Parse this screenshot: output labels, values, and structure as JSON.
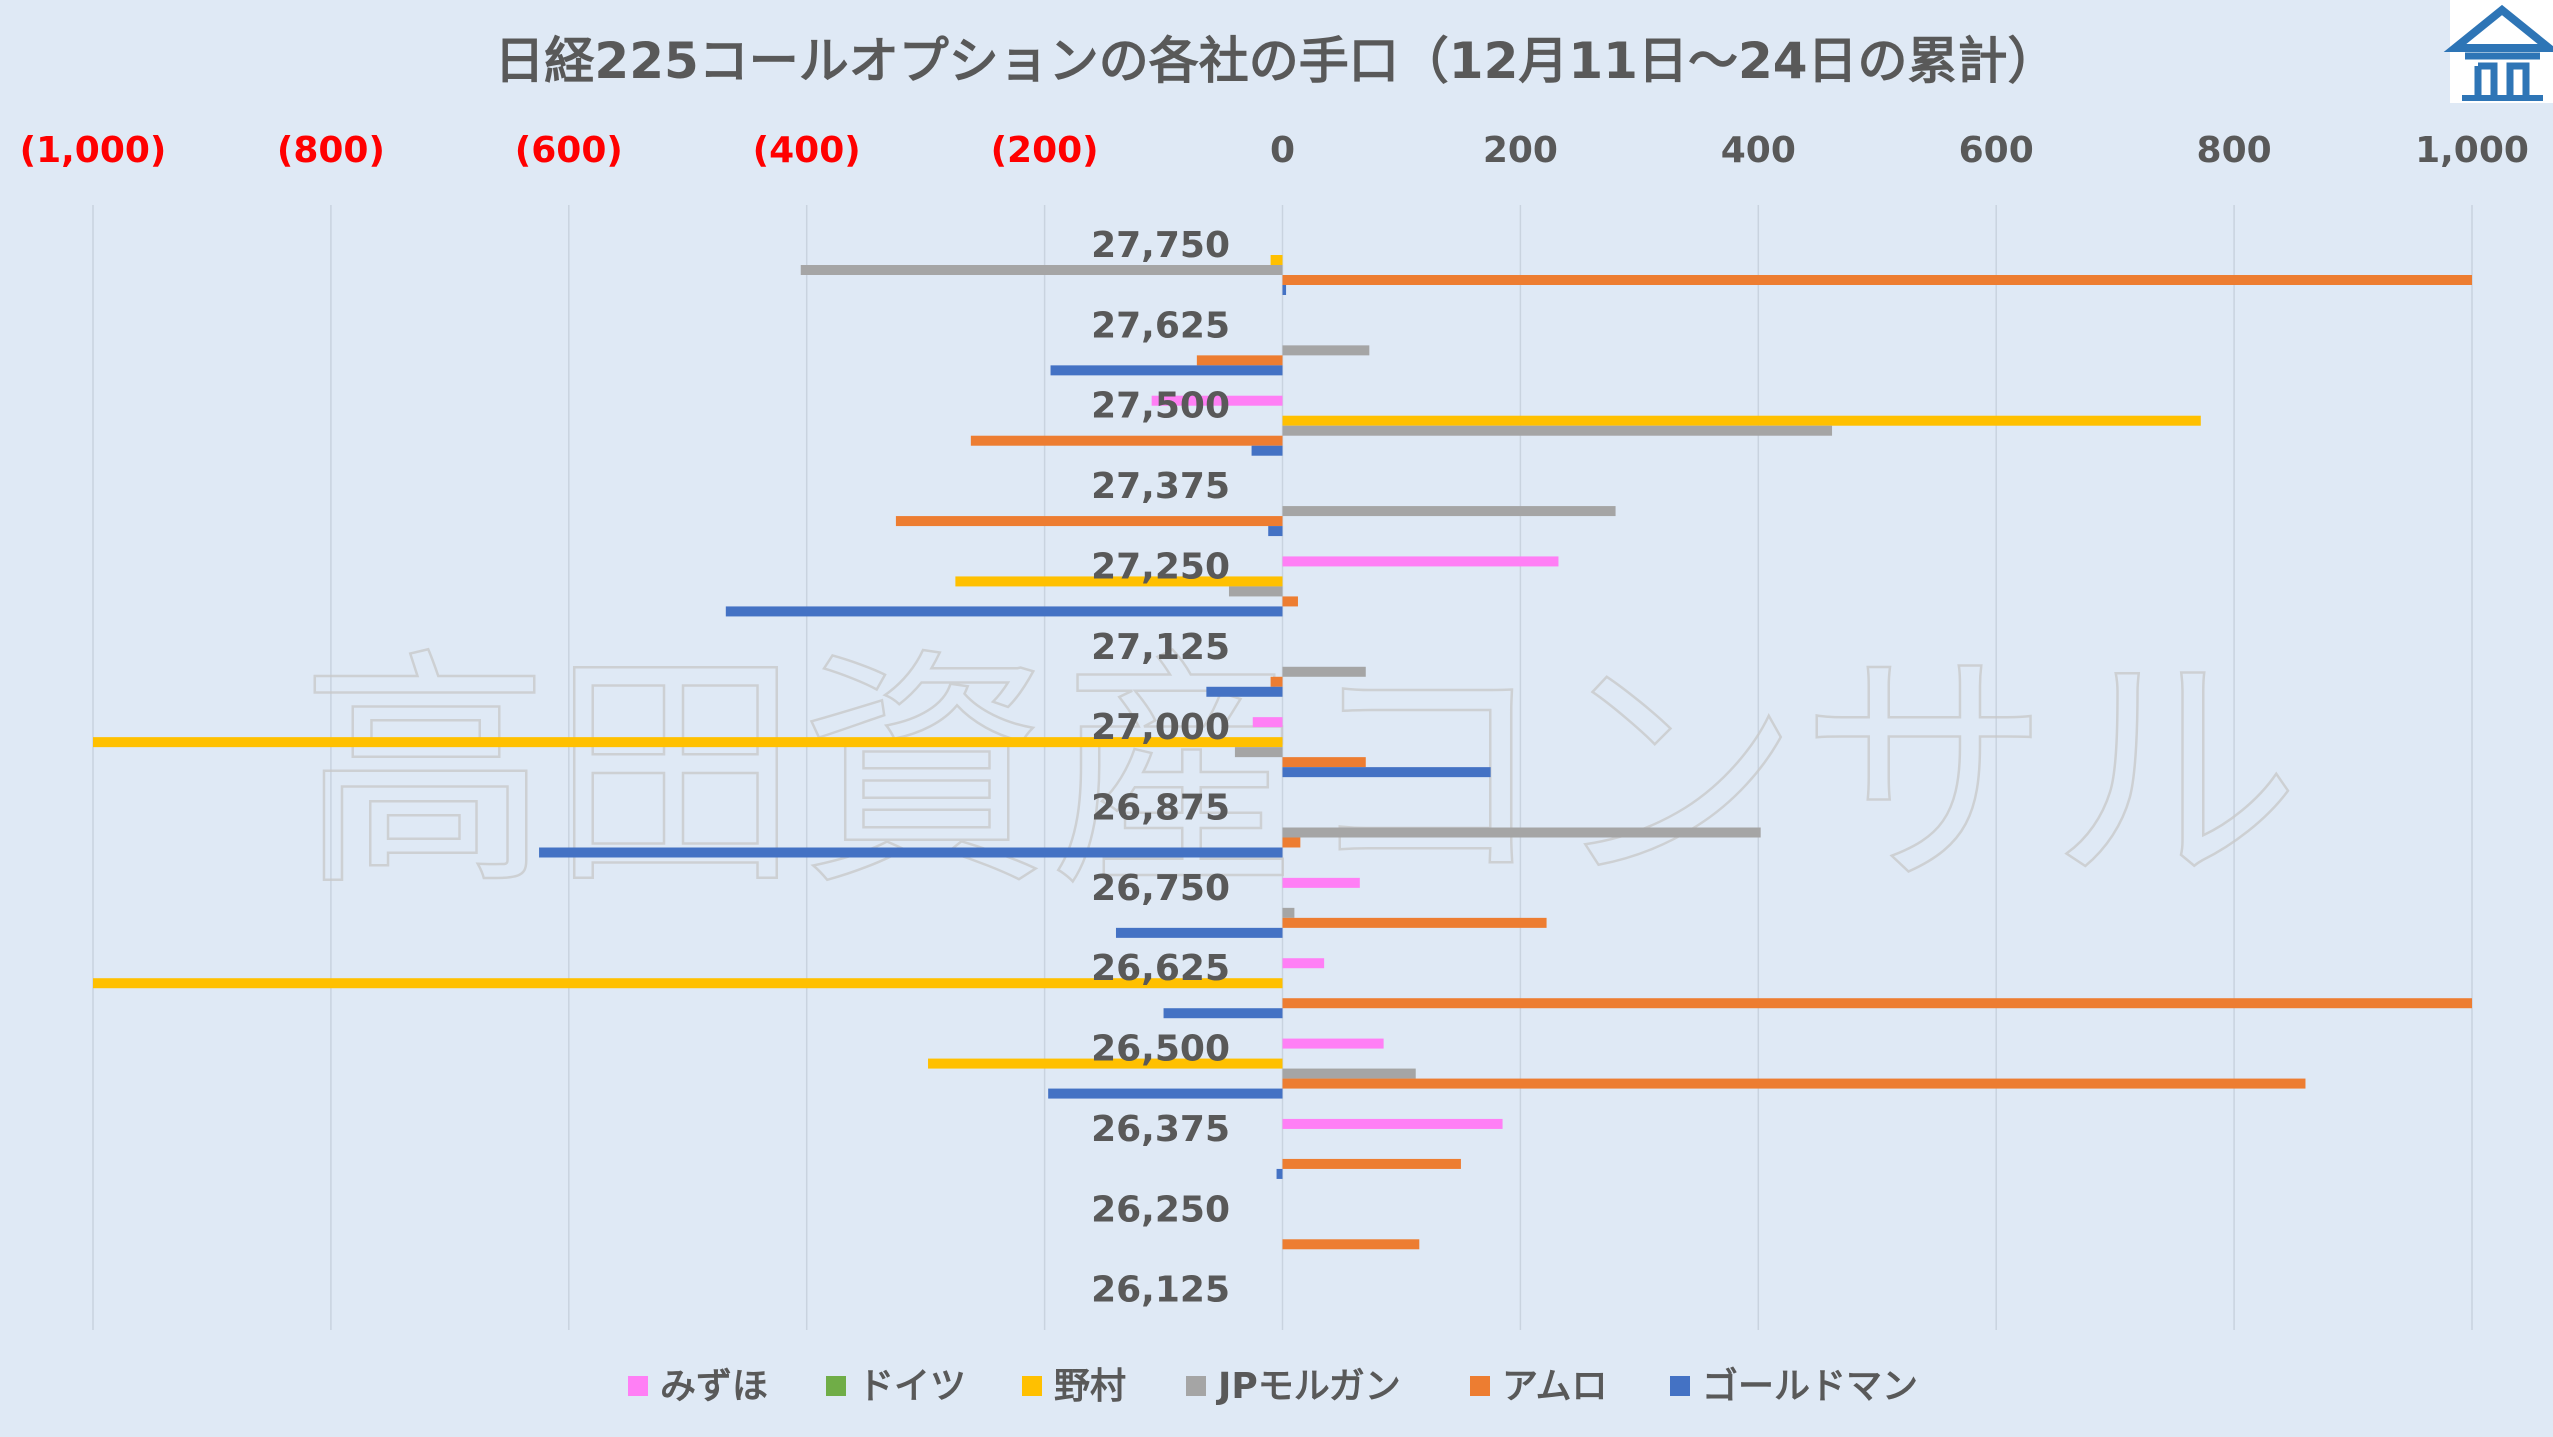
{
  "colors": {
    "background": "#dfe9f5",
    "grid": "#c9d3df",
    "negative_tick": "#ff0000",
    "positive_tick": "#595959",
    "logo": "#2e75b6"
  },
  "watermark": "高田資産コンサル",
  "logo": "logo-icon",
  "chart_data": {
    "type": "bar",
    "orientation": "horizontal",
    "title": "日経225コールオプションの各社の手口（12月11日～24日の累計）",
    "xlim": [
      -1000,
      1000
    ],
    "x_ticks": [
      {
        "value": -1000,
        "label": "(1,000)"
      },
      {
        "value": -800,
        "label": "(800)"
      },
      {
        "value": -600,
        "label": "(600)"
      },
      {
        "value": -400,
        "label": "(400)"
      },
      {
        "value": -200,
        "label": "(200)"
      },
      {
        "value": 0,
        "label": "0"
      },
      {
        "value": 200,
        "label": "200"
      },
      {
        "value": 400,
        "label": "400"
      },
      {
        "value": 600,
        "label": "600"
      },
      {
        "value": 800,
        "label": "800"
      },
      {
        "value": 1000,
        "label": "1,000"
      }
    ],
    "grid": true,
    "legend_position": "bottom",
    "categories": [
      "27,750",
      "27,625",
      "27,500",
      "27,375",
      "27,250",
      "27,125",
      "27,000",
      "26,875",
      "26,750",
      "26,625",
      "26,500",
      "26,375",
      "26,250",
      "26,125"
    ],
    "series": [
      {
        "name": "みずほ",
        "color": "#ff7ff5",
        "values": [
          0,
          0,
          -110,
          0,
          232,
          0,
          -25,
          0,
          65,
          35,
          85,
          185,
          0,
          0
        ]
      },
      {
        "name": "ドイツ",
        "color": "#70ad47",
        "values": [
          0,
          0,
          0,
          0,
          0,
          0,
          0,
          0,
          0,
          0,
          0,
          0,
          0,
          0
        ]
      },
      {
        "name": "野村",
        "color": "#ffc000",
        "values": [
          -10,
          0,
          772,
          0,
          -275,
          0,
          -1000,
          0,
          0,
          -1000,
          -298,
          0,
          0,
          0
        ]
      },
      {
        "name": "JPモルガン",
        "color": "#a5a5a5",
        "values": [
          -405,
          73,
          462,
          280,
          -45,
          70,
          -40,
          402,
          10,
          0,
          112,
          0,
          0,
          0
        ]
      },
      {
        "name": "アムロ",
        "color": "#ed7d31",
        "values": [
          1000,
          -72,
          -262,
          -325,
          13,
          -10,
          70,
          15,
          222,
          1000,
          860,
          150,
          115,
          0
        ]
      },
      {
        "name": "ゴールドマン",
        "color": "#4472c4",
        "values": [
          3,
          -195,
          -26,
          -12,
          -468,
          -64,
          175,
          -625,
          -140,
          -100,
          -197,
          -5,
          0,
          0
        ]
      }
    ]
  }
}
